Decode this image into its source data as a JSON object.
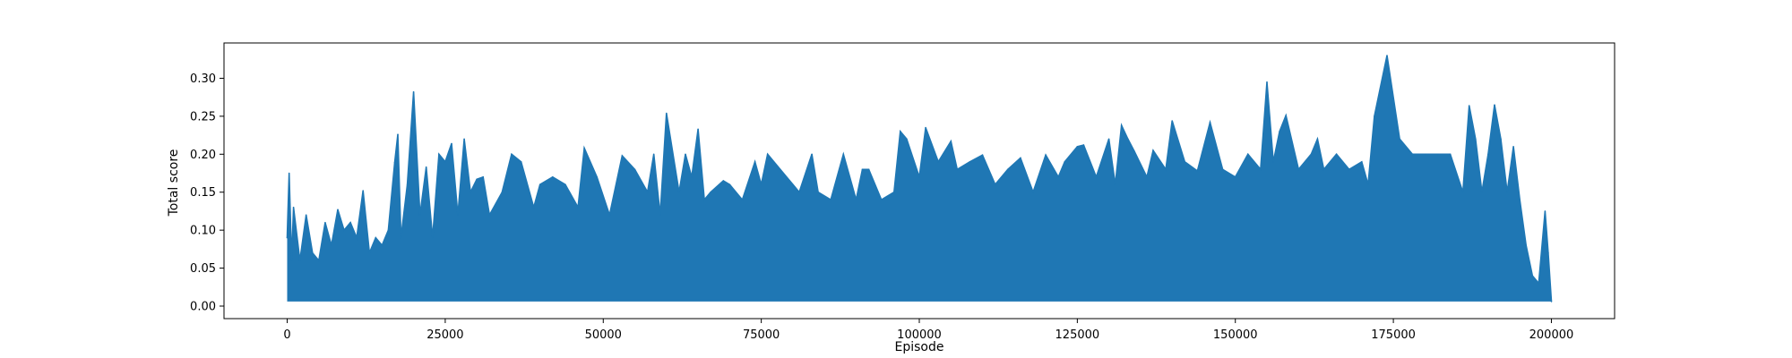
{
  "chart_data": {
    "type": "line",
    "title": "",
    "xlabel": "Episode",
    "ylabel": "Total score",
    "xlim": [
      -10000,
      210000
    ],
    "ylim": [
      -0.0165,
      0.3465
    ],
    "x_ticks": [
      0,
      25000,
      50000,
      75000,
      100000,
      125000,
      150000,
      175000,
      200000
    ],
    "x_tick_labels": [
      "0",
      "25000",
      "50000",
      "75000",
      "100000",
      "125000",
      "150000",
      "175000",
      "200000"
    ],
    "y_ticks": [
      0.0,
      0.05,
      0.1,
      0.15,
      0.2,
      0.25,
      0.3
    ],
    "y_tick_labels": [
      "0.00",
      "0.05",
      "0.10",
      "0.15",
      "0.20",
      "0.25",
      "0.30"
    ],
    "grid": false,
    "legend": "none",
    "series": [
      {
        "color": "#1f77b4",
        "x": [
          0,
          300,
          700,
          1000,
          2000,
          3000,
          4000,
          5000,
          6000,
          7000,
          8000,
          9000,
          10000,
          11000,
          12000,
          13000,
          14000,
          15000,
          16000,
          17000,
          17500,
          18000,
          19000,
          20000,
          21000,
          22000,
          23000,
          24000,
          25000,
          26000,
          27000,
          28000,
          29000,
          30000,
          31000,
          32000,
          34000,
          35500,
          37000,
          39000,
          40000,
          42000,
          44000,
          46000,
          47000,
          49000,
          51000,
          53000,
          55000,
          57000,
          58000,
          59000,
          60000,
          62000,
          63000,
          64000,
          65000,
          66000,
          67000,
          69000,
          70000,
          72000,
          74000,
          75000,
          76000,
          78000,
          80000,
          81000,
          83000,
          84000,
          86000,
          88000,
          90000,
          91000,
          92000,
          94000,
          96000,
          97000,
          98000,
          100000,
          101000,
          103000,
          105000,
          106000,
          108000,
          110000,
          112000,
          114000,
          116000,
          118000,
          120000,
          122000,
          123000,
          125000,
          126000,
          128000,
          130000,
          131000,
          132000,
          133000,
          134000,
          136000,
          137000,
          139000,
          140000,
          142000,
          144000,
          146000,
          148000,
          150000,
          152000,
          154000,
          155000,
          156000,
          157000,
          158000,
          160000,
          162000,
          163000,
          164000,
          166000,
          168000,
          170000,
          171000,
          172000,
          174000,
          176000,
          178000,
          180000,
          182000,
          184000,
          186000,
          187000,
          188000,
          189000,
          190000,
          191000,
          192000,
          193000,
          194000,
          195000,
          196000,
          197000,
          198000,
          199000,
          199500,
          200000
        ],
        "y": [
          0.09,
          0.175,
          0.06,
          0.13,
          0.06,
          0.12,
          0.07,
          0.06,
          0.11,
          0.08,
          0.127,
          0.1,
          0.11,
          0.09,
          0.152,
          0.07,
          0.09,
          0.08,
          0.1,
          0.189,
          0.226,
          0.09,
          0.16,
          0.282,
          0.12,
          0.183,
          0.09,
          0.2,
          0.19,
          0.214,
          0.12,
          0.22,
          0.15,
          0.167,
          0.17,
          0.12,
          0.15,
          0.2,
          0.19,
          0.13,
          0.16,
          0.17,
          0.16,
          0.13,
          0.208,
          0.17,
          0.12,
          0.198,
          0.18,
          0.15,
          0.2,
          0.12,
          0.254,
          0.15,
          0.2,
          0.17,
          0.233,
          0.14,
          0.15,
          0.165,
          0.16,
          0.14,
          0.19,
          0.16,
          0.2,
          0.18,
          0.16,
          0.15,
          0.2,
          0.15,
          0.14,
          0.2,
          0.14,
          0.18,
          0.18,
          0.14,
          0.15,
          0.23,
          0.22,
          0.17,
          0.235,
          0.19,
          0.217,
          0.18,
          0.19,
          0.199,
          0.16,
          0.18,
          0.195,
          0.15,
          0.199,
          0.17,
          0.19,
          0.21,
          0.212,
          0.17,
          0.22,
          0.16,
          0.238,
          0.22,
          0.204,
          0.17,
          0.205,
          0.18,
          0.244,
          0.19,
          0.178,
          0.242,
          0.18,
          0.17,
          0.2,
          0.18,
          0.295,
          0.19,
          0.23,
          0.251,
          0.18,
          0.2,
          0.22,
          0.18,
          0.2,
          0.18,
          0.19,
          0.16,
          0.25,
          0.33,
          0.22,
          0.2,
          0.2,
          0.2,
          0.2,
          0.15,
          0.264,
          0.22,
          0.15,
          0.2,
          0.265,
          0.22,
          0.15,
          0.21,
          0.14,
          0.08,
          0.04,
          0.03,
          0.125,
          0.07,
          0.006
        ]
      }
    ]
  }
}
